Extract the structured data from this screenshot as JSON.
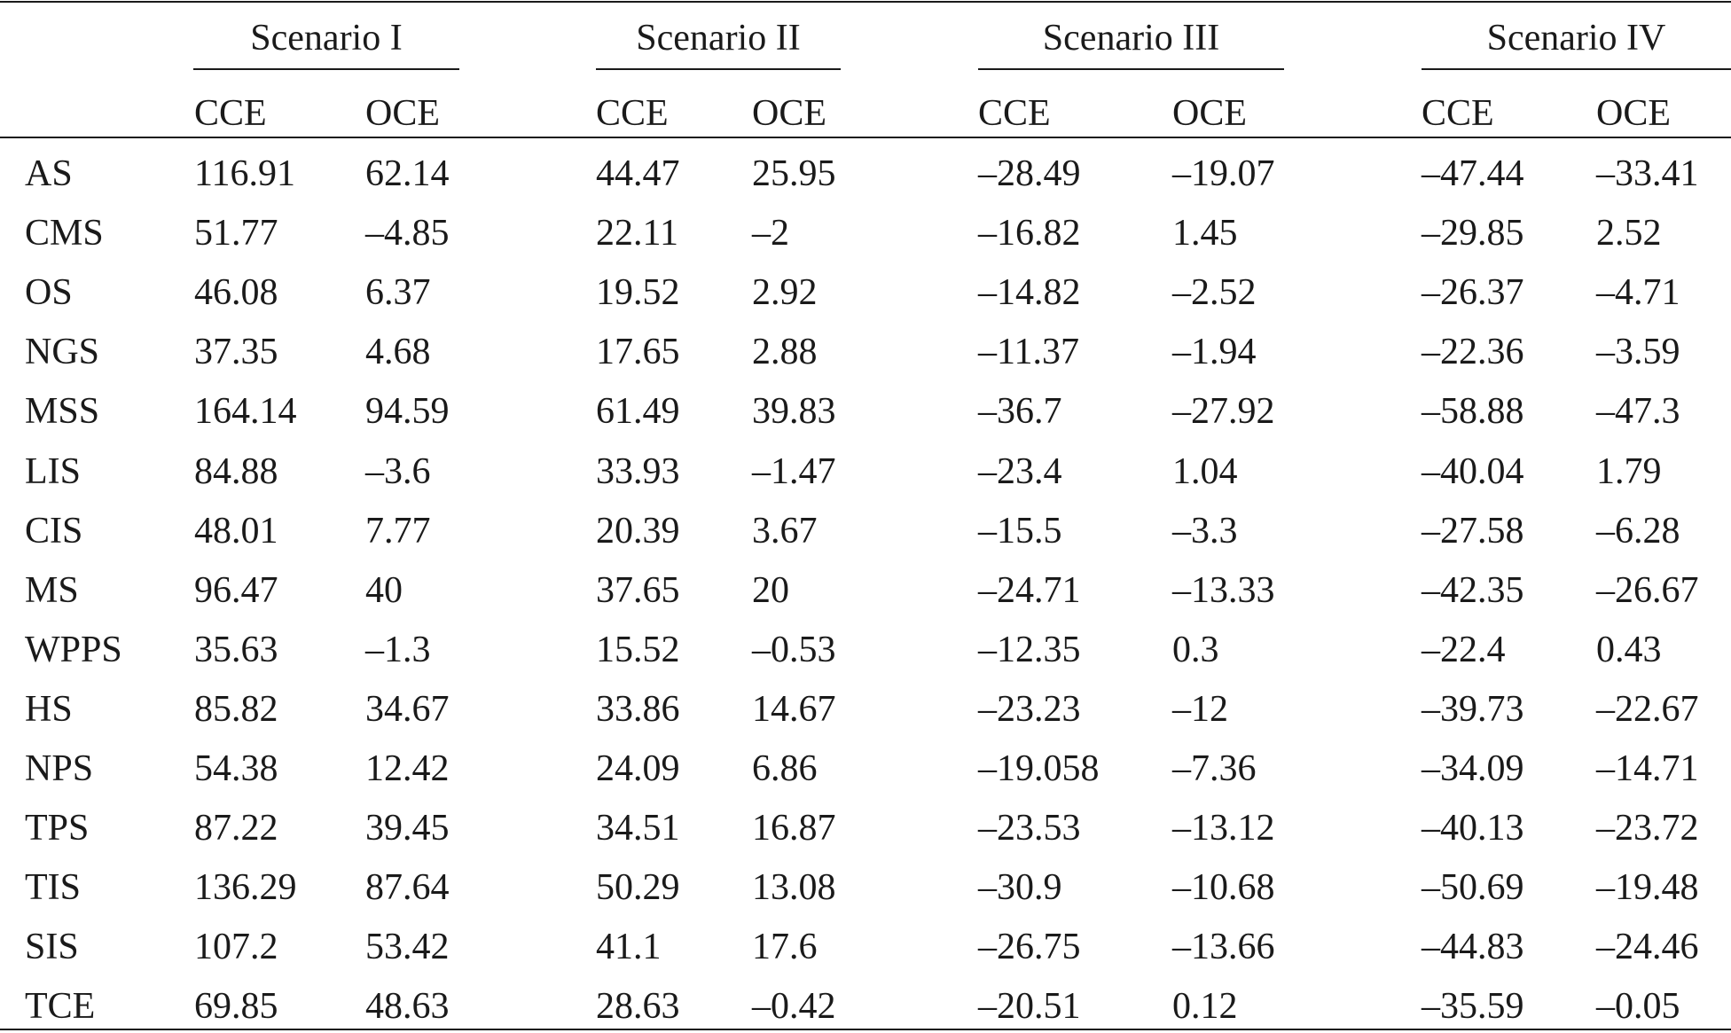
{
  "table": {
    "scenarios": [
      "Scenario I",
      "Scenario II",
      "Scenario III",
      "Scenario IV"
    ],
    "subheaders": [
      "CCE",
      "OCE"
    ],
    "rows": [
      {
        "label": "AS",
        "values": [
          "116.91",
          "62.14",
          "44.47",
          "25.95",
          "–28.49",
          "–19.07",
          "–47.44",
          "–33.41"
        ]
      },
      {
        "label": "CMS",
        "values": [
          "51.77",
          "–4.85",
          "22.11",
          "–2",
          "–16.82",
          "1.45",
          "–29.85",
          "2.52"
        ]
      },
      {
        "label": "OS",
        "values": [
          "46.08",
          "6.37",
          "19.52",
          "2.92",
          "–14.82",
          "–2.52",
          "–26.37",
          "–4.71"
        ]
      },
      {
        "label": "NGS",
        "values": [
          "37.35",
          "4.68",
          "17.65",
          "2.88",
          "–11.37",
          "–1.94",
          "–22.36",
          "–3.59"
        ]
      },
      {
        "label": "MSS",
        "values": [
          "164.14",
          "94.59",
          "61.49",
          "39.83",
          "–36.7",
          "–27.92",
          "–58.88",
          "–47.3"
        ]
      },
      {
        "label": "LIS",
        "values": [
          "84.88",
          "–3.6",
          "33.93",
          "–1.47",
          "–23.4",
          "1.04",
          "–40.04",
          "1.79"
        ]
      },
      {
        "label": "CIS",
        "values": [
          "48.01",
          "7.77",
          "20.39",
          "3.67",
          "–15.5",
          "–3.3",
          "–27.58",
          "–6.28"
        ]
      },
      {
        "label": "MS",
        "values": [
          "96.47",
          "40",
          "37.65",
          "20",
          "–24.71",
          "–13.33",
          "–42.35",
          "–26.67"
        ]
      },
      {
        "label": "WPPS",
        "values": [
          "35.63",
          "–1.3",
          "15.52",
          "–0.53",
          "–12.35",
          "0.3",
          "–22.4",
          "0.43"
        ]
      },
      {
        "label": "HS",
        "values": [
          "85.82",
          "34.67",
          "33.86",
          "14.67",
          "–23.23",
          "–12",
          "–39.73",
          "–22.67"
        ]
      },
      {
        "label": "NPS",
        "values": [
          "54.38",
          "12.42",
          "24.09",
          "6.86",
          "–19.058",
          "–7.36",
          "–34.09",
          "–14.71"
        ]
      },
      {
        "label": "TPS",
        "values": [
          "87.22",
          "39.45",
          "34.51",
          "16.87",
          "–23.53",
          "–13.12",
          "–40.13",
          "–23.72"
        ]
      },
      {
        "label": "TIS",
        "values": [
          "136.29",
          "87.64",
          "50.29",
          "13.08",
          "–30.9",
          "–10.68",
          "–50.69",
          "–19.48"
        ]
      },
      {
        "label": "SIS",
        "values": [
          "107.2",
          "53.42",
          "41.1",
          "17.6",
          "–26.75",
          "–13.66",
          "–44.83",
          "–24.46"
        ]
      },
      {
        "label": "TCE",
        "values": [
          "69.85",
          "48.63",
          "28.63",
          "–0.42",
          "–20.51",
          "0.12",
          "–35.59",
          "–0.05"
        ]
      }
    ]
  }
}
